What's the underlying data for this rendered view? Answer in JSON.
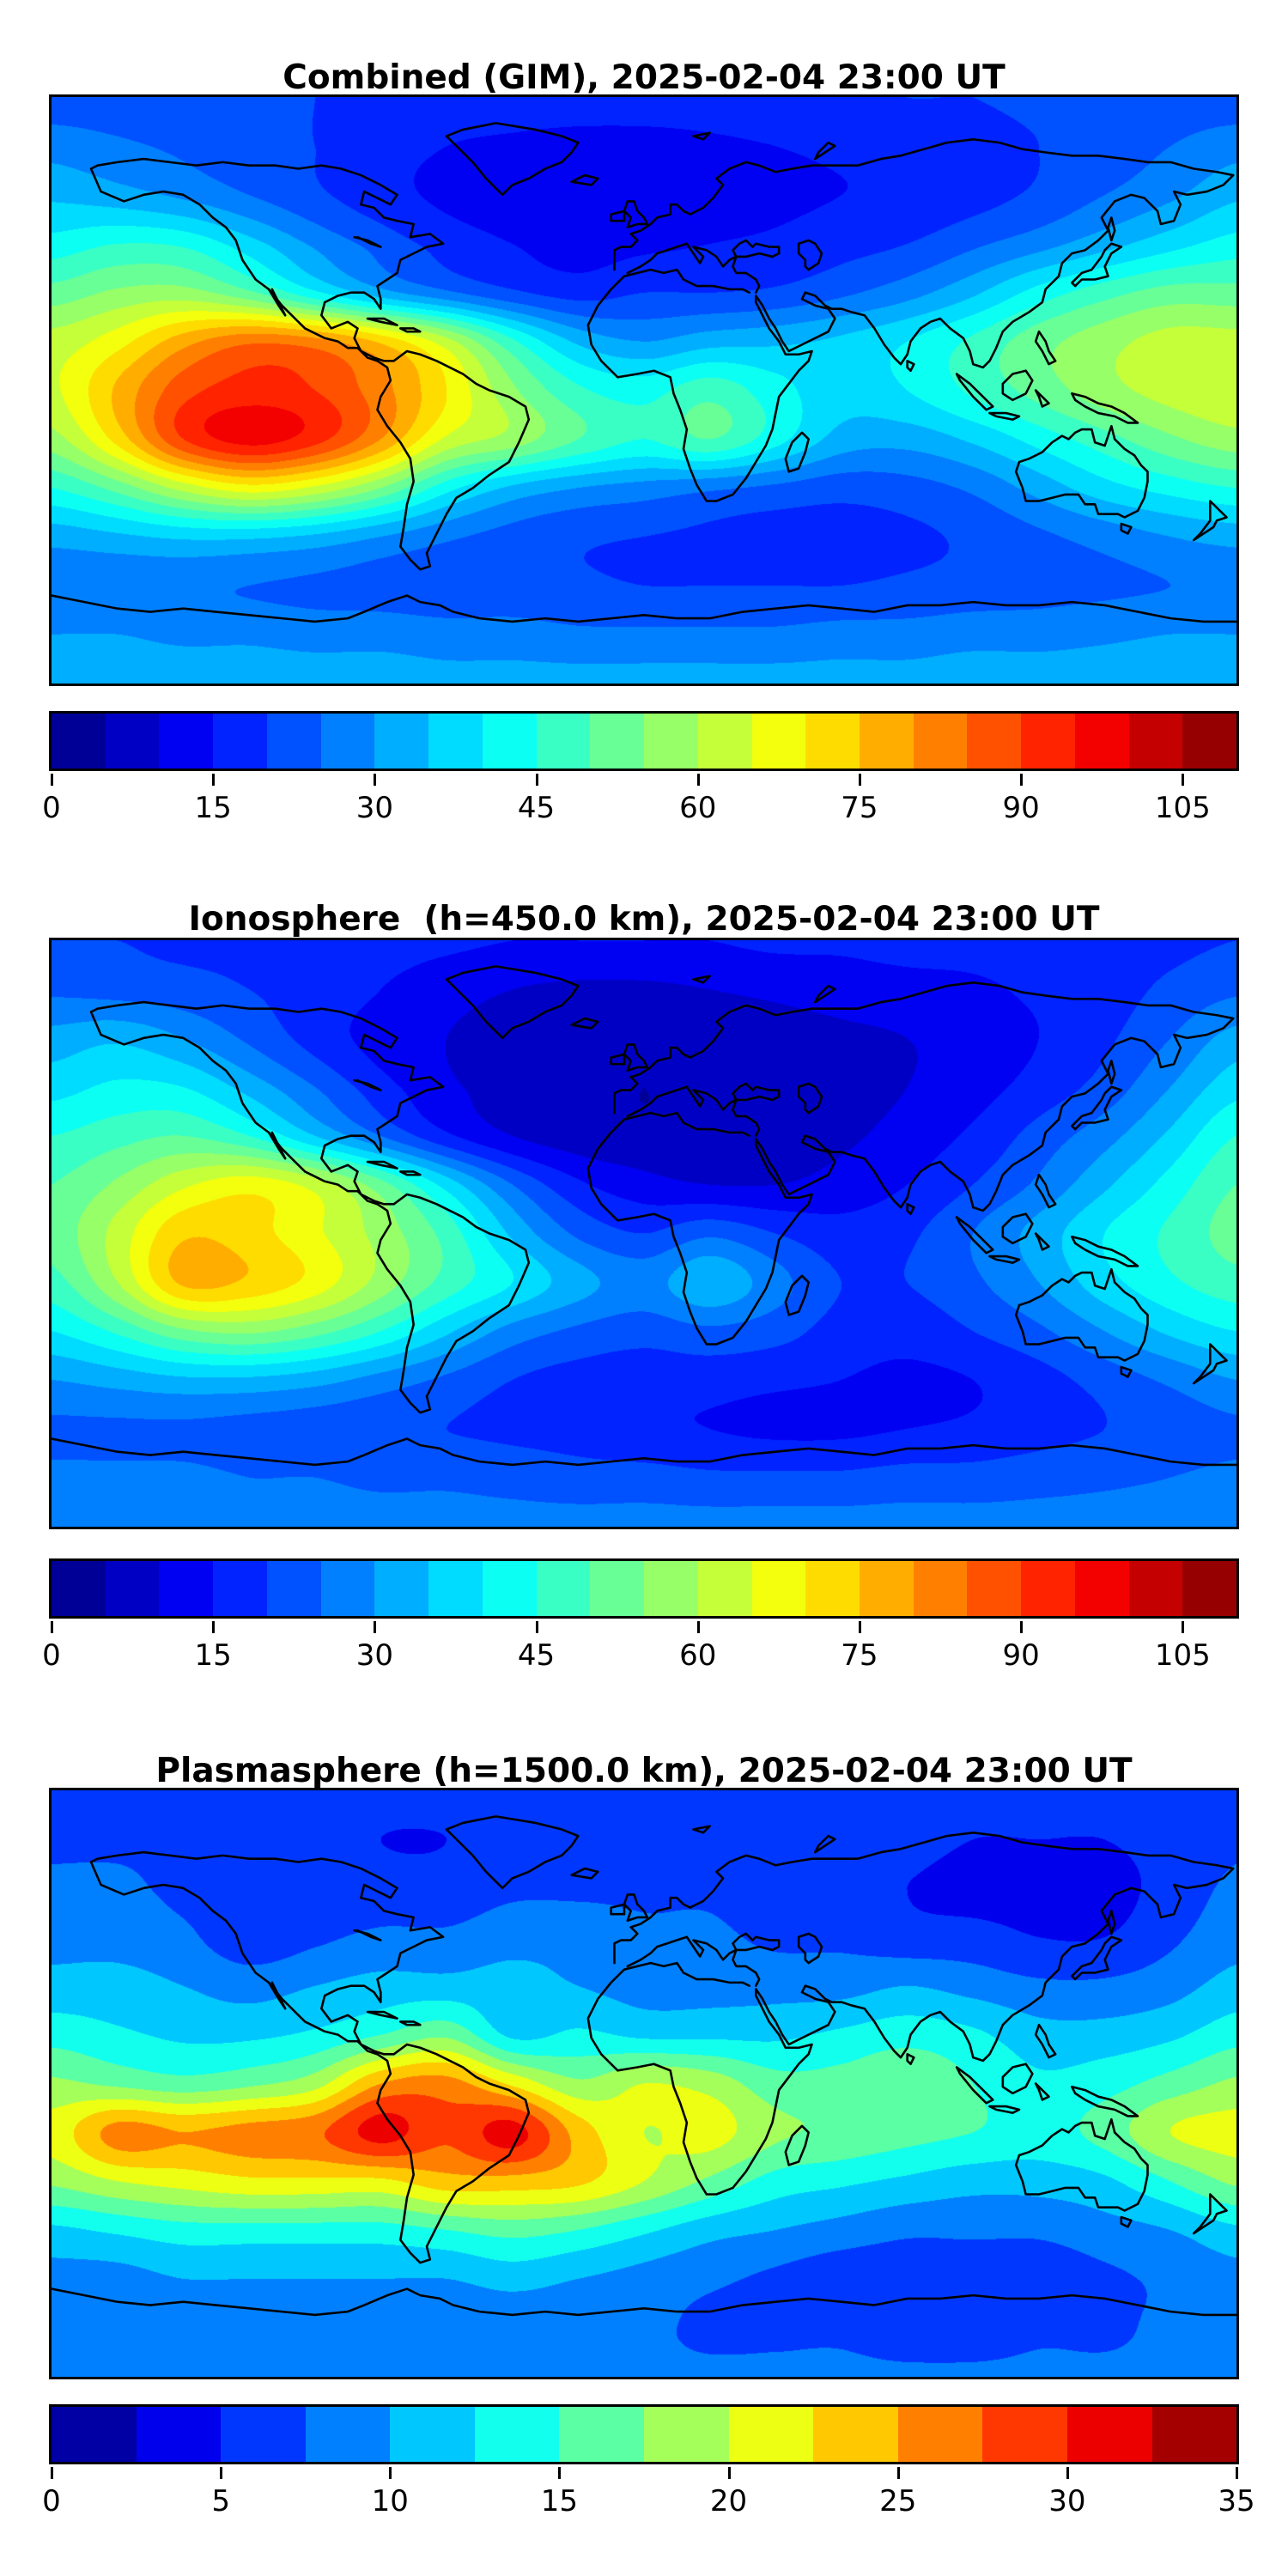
{
  "figure": {
    "background": "#ffffff",
    "colormap": "jet",
    "coastline_color": "#000000"
  },
  "chart_data": [
    {
      "type": "heatmap",
      "title": "Combined (GIM), 2025-02-04 23:00 UT",
      "projection": "equirectangular",
      "xlabel": "",
      "ylabel": "",
      "lon_range": [
        -180,
        180
      ],
      "lat_range": [
        -90,
        90
      ],
      "levels": {
        "min": 0,
        "max": 110,
        "step": 5
      },
      "colorbar_ticks": [
        0,
        15,
        30,
        45,
        60,
        75,
        90,
        105
      ],
      "lon": [
        -180,
        -160,
        -140,
        -120,
        -100,
        -80,
        -60,
        -40,
        -20,
        0,
        20,
        40,
        60,
        80,
        100,
        120,
        140,
        160,
        180
      ],
      "lat": [
        90,
        75,
        60,
        45,
        30,
        15,
        0,
        -15,
        -30,
        -45,
        -60,
        -75,
        -90
      ],
      "values": [
        [
          22,
          22,
          22,
          21,
          20,
          19,
          18,
          18,
          18,
          18,
          18,
          19,
          19,
          20,
          20,
          21,
          21,
          22,
          22
        ],
        [
          28,
          26,
          24,
          22,
          20,
          17,
          15,
          14,
          13,
          13,
          14,
          15,
          16,
          17,
          18,
          20,
          22,
          25,
          28
        ],
        [
          34,
          32,
          29,
          25,
          21,
          17,
          14,
          13,
          12,
          12,
          13,
          14,
          15,
          16,
          18,
          21,
          25,
          29,
          34
        ],
        [
          42,
          45,
          44,
          37,
          29,
          23,
          18,
          15,
          13,
          14,
          15,
          16,
          18,
          20,
          24,
          28,
          33,
          38,
          42
        ],
        [
          52,
          56,
          57,
          51,
          41,
          32,
          26,
          21,
          18,
          20,
          20,
          21,
          24,
          28,
          34,
          42,
          48,
          52,
          52
        ],
        [
          62,
          68,
          78,
          84,
          82,
          74,
          62,
          46,
          34,
          30,
          33,
          34,
          36,
          40,
          46,
          53,
          58,
          62,
          62
        ],
        [
          64,
          76,
          88,
          92,
          90,
          82,
          70,
          56,
          46,
          43,
          48,
          42,
          37,
          40,
          46,
          52,
          58,
          62,
          64
        ],
        [
          58,
          72,
          90,
          97,
          92,
          80,
          64,
          58,
          50,
          45,
          50,
          42,
          33,
          32,
          36,
          42,
          48,
          54,
          58
        ],
        [
          45,
          52,
          62,
          68,
          64,
          55,
          42,
          34,
          30,
          28,
          26,
          24,
          22,
          23,
          26,
          32,
          38,
          42,
          45
        ],
        [
          32,
          34,
          36,
          36,
          34,
          30,
          26,
          23,
          21,
          20,
          19,
          18,
          18,
          19,
          21,
          24,
          27,
          30,
          32
        ],
        [
          26,
          26,
          26,
          25,
          24,
          23,
          22,
          22,
          21,
          20,
          20,
          20,
          20,
          21,
          22,
          23,
          24,
          25,
          26
        ],
        [
          30,
          30,
          29,
          29,
          28,
          28,
          27,
          27,
          26,
          26,
          26,
          26,
          27,
          27,
          28,
          28,
          29,
          30,
          30
        ],
        [
          33,
          33,
          33,
          33,
          33,
          33,
          32,
          32,
          32,
          32,
          32,
          32,
          32,
          32,
          33,
          33,
          33,
          33,
          33
        ]
      ]
    },
    {
      "type": "heatmap",
      "title": "Ionosphere  (h=450.0 km), 2025-02-04 23:00 UT",
      "projection": "equirectangular",
      "xlabel": "",
      "ylabel": "",
      "lon_range": [
        -180,
        180
      ],
      "lat_range": [
        -90,
        90
      ],
      "levels": {
        "min": 0,
        "max": 110,
        "step": 5
      },
      "colorbar_ticks": [
        0,
        15,
        30,
        45,
        60,
        75,
        90,
        105
      ],
      "lon": [
        -180,
        -160,
        -140,
        -120,
        -100,
        -80,
        -60,
        -40,
        -20,
        0,
        20,
        40,
        60,
        80,
        100,
        120,
        140,
        160,
        180
      ],
      "lat": [
        90,
        75,
        60,
        45,
        30,
        15,
        0,
        -15,
        -30,
        -45,
        -60,
        -75,
        -90
      ],
      "values": [
        [
          20,
          20,
          19,
          19,
          18,
          17,
          16,
          15,
          15,
          15,
          15,
          16,
          16,
          17,
          17,
          18,
          19,
          19,
          20
        ],
        [
          24,
          23,
          22,
          20,
          18,
          15,
          12,
          10,
          9,
          9,
          10,
          11,
          12,
          13,
          14,
          16,
          18,
          21,
          24
        ],
        [
          32,
          34,
          30,
          24,
          18,
          13,
          10,
          8,
          7,
          6,
          7,
          8,
          9,
          10,
          12,
          15,
          19,
          25,
          32
        ],
        [
          38,
          41,
          40,
          33,
          25,
          17,
          11,
          8,
          6,
          5,
          6,
          7,
          8,
          10,
          13,
          17,
          22,
          30,
          38
        ],
        [
          45,
          48,
          50,
          45,
          35,
          25,
          16,
          10,
          7,
          6,
          6,
          7,
          9,
          12,
          16,
          22,
          28,
          36,
          45
        ],
        [
          50,
          56,
          64,
          68,
          63,
          52,
          38,
          25,
          16,
          12,
          10,
          10,
          12,
          15,
          20,
          26,
          34,
          42,
          50
        ],
        [
          52,
          62,
          74,
          72,
          66,
          58,
          48,
          34,
          24,
          20,
          24,
          20,
          17,
          19,
          25,
          32,
          40,
          46,
          52
        ],
        [
          48,
          60,
          76,
          74,
          68,
          58,
          48,
          40,
          32,
          28,
          34,
          27,
          20,
          20,
          24,
          30,
          38,
          44,
          48
        ],
        [
          40,
          46,
          54,
          56,
          52,
          45,
          36,
          28,
          24,
          22,
          24,
          22,
          18,
          17,
          20,
          24,
          30,
          36,
          40
        ],
        [
          30,
          32,
          34,
          34,
          32,
          28,
          24,
          20,
          18,
          17,
          17,
          16,
          15,
          14,
          15,
          18,
          22,
          26,
          30
        ],
        [
          24,
          24,
          24,
          23,
          22,
          21,
          20,
          19,
          18,
          16,
          15,
          14,
          14,
          15,
          16,
          18,
          20,
          22,
          24
        ],
        [
          26,
          26,
          26,
          25,
          25,
          24,
          24,
          23,
          22,
          22,
          21,
          21,
          21,
          22,
          22,
          23,
          24,
          25,
          26
        ],
        [
          27,
          27,
          27,
          27,
          27,
          27,
          27,
          27,
          27,
          27,
          27,
          27,
          27,
          27,
          27,
          27,
          27,
          27,
          27
        ]
      ]
    },
    {
      "type": "heatmap",
      "title": "Plasmasphere (h=1500.0 km), 2025-02-04 23:00 UT",
      "projection": "equirectangular",
      "xlabel": "",
      "ylabel": "",
      "lon_range": [
        -180,
        180
      ],
      "lat_range": [
        -90,
        90
      ],
      "levels": {
        "min": 0,
        "max": 35,
        "step": 2.5
      },
      "colorbar_ticks": [
        0,
        5,
        10,
        15,
        20,
        25,
        30,
        35
      ],
      "lon": [
        -180,
        -160,
        -140,
        -120,
        -100,
        -80,
        -60,
        -40,
        -20,
        0,
        20,
        40,
        60,
        80,
        100,
        120,
        140,
        160,
        180
      ],
      "lat": [
        90,
        75,
        60,
        45,
        30,
        15,
        0,
        -15,
        -30,
        -45,
        -60,
        -75,
        -90
      ],
      "values": [
        [
          6,
          6,
          6,
          6,
          6,
          6,
          6,
          6,
          6,
          6,
          6,
          6,
          6,
          6,
          6,
          6,
          6,
          6,
          6
        ],
        [
          7,
          7,
          7,
          7,
          6,
          5,
          5,
          6,
          6,
          6,
          6,
          6,
          6,
          6,
          5,
          5,
          5,
          6,
          7
        ],
        [
          8,
          8,
          7,
          7,
          6,
          6,
          6,
          7,
          7,
          7,
          7,
          6,
          6,
          5,
          4,
          4,
          4,
          6,
          8
        ],
        [
          9,
          9,
          8,
          6,
          7,
          8,
          8,
          9,
          9,
          8,
          8,
          7,
          7,
          6,
          6,
          5,
          5,
          7,
          9
        ],
        [
          11,
          11,
          10,
          9,
          10,
          11,
          11,
          11,
          10,
          9,
          9,
          9,
          9,
          10,
          9,
          8,
          8,
          9,
          11
        ],
        [
          14,
          13,
          12,
          12,
          13,
          15,
          17,
          12,
          13,
          12,
          12,
          12,
          13,
          14,
          13,
          11,
          11,
          12,
          14
        ],
        [
          18,
          17,
          16,
          17,
          19,
          25,
          26,
          22,
          18,
          20,
          19,
          16,
          16,
          17,
          15,
          13,
          14,
          16,
          18
        ],
        [
          21,
          26,
          25,
          26,
          27,
          31,
          28,
          31,
          24,
          20,
          21,
          18,
          17,
          16,
          15,
          14,
          16,
          20,
          21
        ],
        [
          18,
          20,
          21,
          22,
          22,
          22,
          24,
          24,
          23,
          20,
          17,
          14,
          13,
          12,
          11,
          11,
          12,
          15,
          18
        ],
        [
          12,
          13,
          14,
          14,
          14,
          14,
          15,
          16,
          15,
          13,
          11,
          10,
          9,
          8,
          8,
          8,
          9,
          10,
          12
        ],
        [
          9,
          9,
          10,
          10,
          10,
          10,
          10,
          11,
          10,
          9,
          8,
          7,
          6,
          6,
          6,
          6,
          7,
          8,
          9
        ],
        [
          8,
          8,
          8,
          8,
          8,
          8,
          8,
          8,
          8,
          8,
          7,
          7,
          7,
          6,
          6,
          7,
          7,
          8,
          8
        ],
        [
          8,
          8,
          8,
          8,
          8,
          8,
          8,
          8,
          8,
          8,
          8,
          8,
          8,
          8,
          8,
          8,
          8,
          8,
          8
        ]
      ]
    }
  ]
}
